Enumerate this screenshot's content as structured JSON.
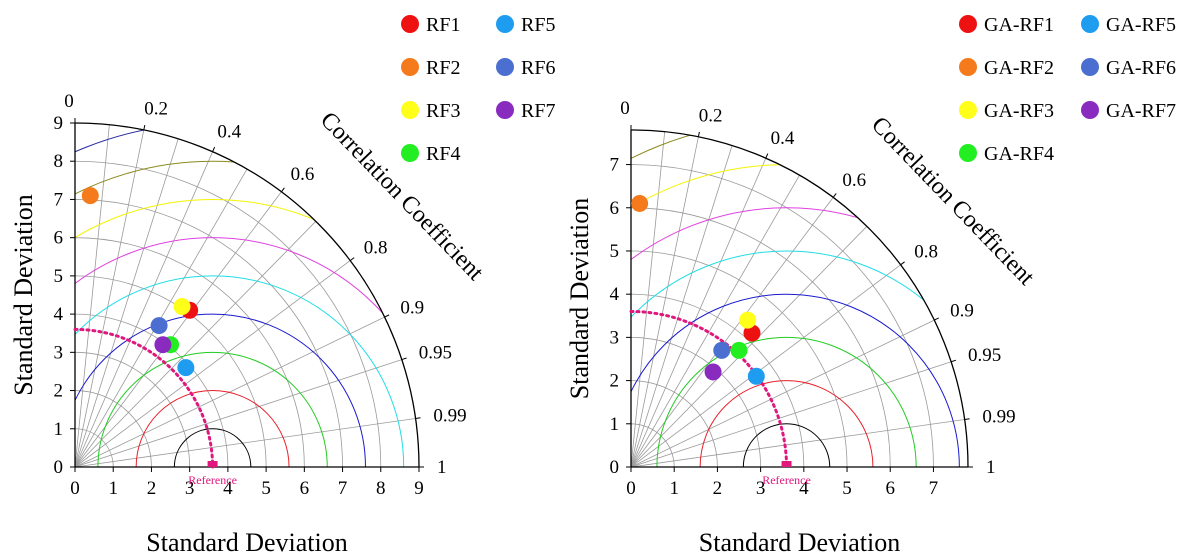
{
  "chart_data": [
    {
      "type": "scatter",
      "subtype": "taylor-diagram",
      "xlabel": "Standard Deviation",
      "ylabel": "Standard Deviation",
      "arc_label": "Correlation Coefficient",
      "reference_label": "Reference",
      "reference_std": 3.6,
      "max_std": 9,
      "std_ticks": [
        "0",
        "1",
        "2",
        "3",
        "4",
        "5",
        "6",
        "7",
        "8",
        "9"
      ],
      "corr_ticks": [
        "0",
        "0.2",
        "0.4",
        "0.6",
        "0.8",
        "0.9",
        "0.95",
        "0.99",
        "1"
      ],
      "legend_position": "top-right",
      "centered_rms_arcs": [
        {
          "radius": 1,
          "color": "#000000"
        },
        {
          "radius": 2,
          "color": "#e8202a"
        },
        {
          "radius": 3,
          "color": "#22cc22"
        },
        {
          "radius": 4,
          "color": "#1a1ad0"
        },
        {
          "radius": 5,
          "color": "#22dde6"
        },
        {
          "radius": 6,
          "color": "#e040e0"
        },
        {
          "radius": 7,
          "color": "#f4f400"
        },
        {
          "radius": 8,
          "color": "#8a8a20"
        },
        {
          "radius": 9,
          "color": "#2a2aa0"
        }
      ],
      "series": [
        {
          "name": "RF1",
          "color": "#ee1111",
          "x": 3.0,
          "y": 4.1
        },
        {
          "name": "RF2",
          "color": "#f47a1c",
          "x": 0.4,
          "y": 7.1
        },
        {
          "name": "RF3",
          "color": "#ffff1a",
          "x": 2.8,
          "y": 4.2
        },
        {
          "name": "RF4",
          "color": "#22ee22",
          "x": 2.5,
          "y": 3.2
        },
        {
          "name": "RF5",
          "color": "#1e9cf0",
          "x": 2.9,
          "y": 2.6
        },
        {
          "name": "RF6",
          "color": "#4a6fd0",
          "x": 2.2,
          "y": 3.7
        },
        {
          "name": "RF7",
          "color": "#8a2bc0",
          "x": 2.3,
          "y": 3.2
        }
      ]
    },
    {
      "type": "scatter",
      "subtype": "taylor-diagram",
      "xlabel": "Standard Deviation",
      "ylabel": "Standard Deviation",
      "arc_label": "Correlation Coefficient",
      "reference_label": "Reference",
      "reference_std": 3.6,
      "max_std": 7.8,
      "std_ticks": [
        "0",
        "1",
        "2",
        "3",
        "4",
        "5",
        "6",
        "7"
      ],
      "corr_ticks": [
        "0",
        "0.2",
        "0.4",
        "0.6",
        "0.8",
        "0.9",
        "0.95",
        "0.99",
        "1"
      ],
      "legend_position": "top-right",
      "centered_rms_arcs": [
        {
          "radius": 1,
          "color": "#000000"
        },
        {
          "radius": 2,
          "color": "#e8202a"
        },
        {
          "radius": 3,
          "color": "#22cc22"
        },
        {
          "radius": 4,
          "color": "#1a1ad0"
        },
        {
          "radius": 5,
          "color": "#22dde6"
        },
        {
          "radius": 6,
          "color": "#e040e0"
        },
        {
          "radius": 7,
          "color": "#f4f400"
        },
        {
          "radius": 8,
          "color": "#8a8a20"
        }
      ],
      "series": [
        {
          "name": "GA-RF1",
          "color": "#ee1111",
          "x": 2.8,
          "y": 3.1
        },
        {
          "name": "GA-RF2",
          "color": "#f47a1c",
          "x": 0.2,
          "y": 6.1
        },
        {
          "name": "GA-RF3",
          "color": "#ffff1a",
          "x": 2.7,
          "y": 3.4
        },
        {
          "name": "GA-RF4",
          "color": "#22ee22",
          "x": 2.5,
          "y": 2.7
        },
        {
          "name": "GA-RF5",
          "color": "#1e9cf0",
          "x": 2.9,
          "y": 2.1
        },
        {
          "name": "GA-RF6",
          "color": "#4a6fd0",
          "x": 2.1,
          "y": 2.7
        },
        {
          "name": "GA-RF7",
          "color": "#8a2bc0",
          "x": 1.9,
          "y": 2.2
        }
      ]
    }
  ]
}
